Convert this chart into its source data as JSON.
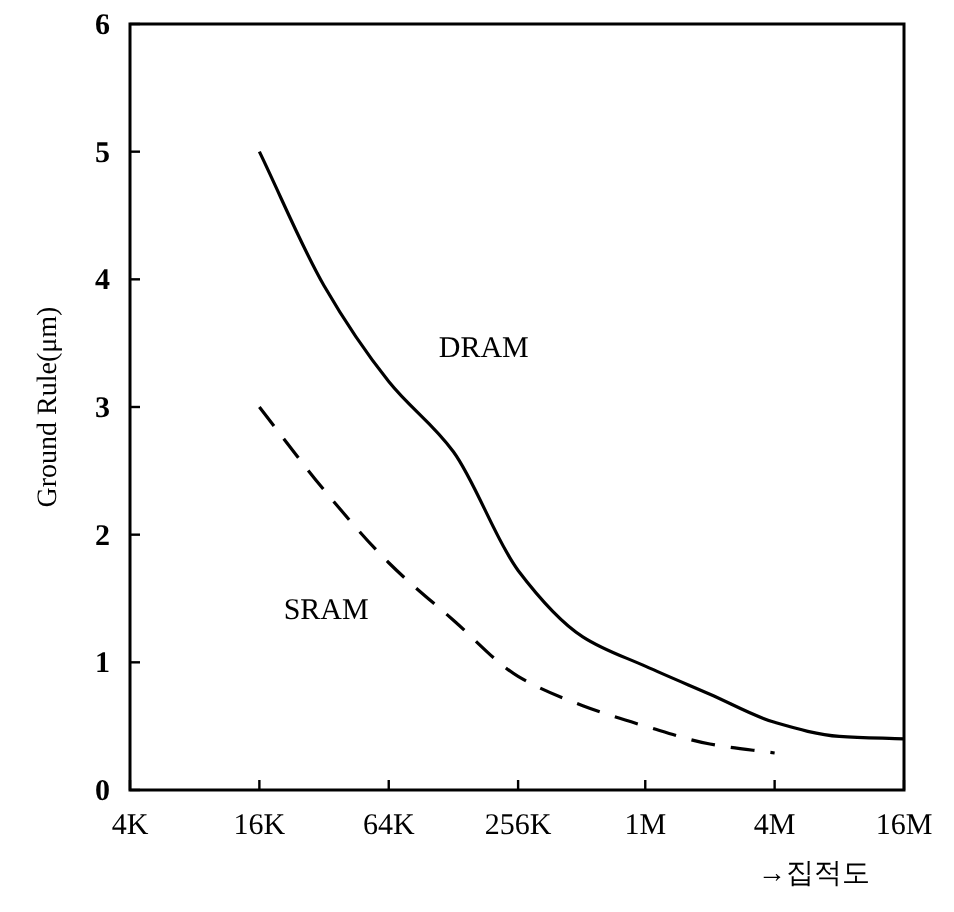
{
  "chart_data": {
    "type": "line",
    "xlabel": "→집적도",
    "ylabel": "Ground Rule(μm)",
    "log": "x",
    "xlim": [
      4000,
      16000000
    ],
    "ylim": [
      0,
      6
    ],
    "xticks": [
      {
        "value": 4000,
        "label": "4K"
      },
      {
        "value": 16000,
        "label": "16K"
      },
      {
        "value": 64000,
        "label": "64K"
      },
      {
        "value": 256000,
        "label": "256K"
      },
      {
        "value": 1000000,
        "label": "1M"
      },
      {
        "value": 4000000,
        "label": "4M"
      },
      {
        "value": 16000000,
        "label": "16M"
      }
    ],
    "yticks": [
      0,
      1,
      2,
      3,
      4,
      5,
      6
    ],
    "grid": false,
    "legend": false,
    "series": [
      {
        "name": "DRAM",
        "color": "#000000",
        "line_style": "solid",
        "x": [
          16000,
          32000,
          64000,
          128000,
          256000,
          512000,
          1000000,
          2000000,
          4000000,
          8000000,
          16000000
        ],
        "values": [
          5.0,
          3.95,
          3.2,
          2.65,
          1.72,
          1.2,
          0.97,
          0.75,
          0.53,
          0.42,
          0.4
        ]
      },
      {
        "name": "SRAM",
        "color": "#000000",
        "line_style": "dashed",
        "x": [
          16000,
          32000,
          64000,
          128000,
          256000,
          512000,
          1000000,
          2000000,
          4000000
        ],
        "values": [
          3.0,
          2.35,
          1.78,
          1.33,
          0.89,
          0.66,
          0.5,
          0.36,
          0.29
        ]
      }
    ]
  }
}
